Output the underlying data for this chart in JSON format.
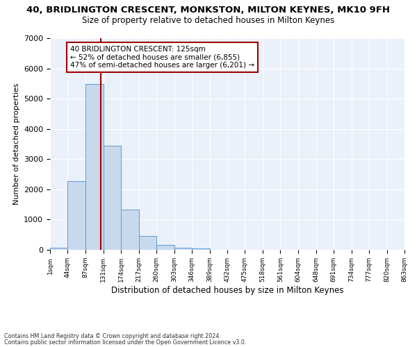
{
  "title1": "40, BRIDLINGTON CRESCENT, MONKSTON, MILTON KEYNES, MK10 9FH",
  "title2": "Size of property relative to detached houses in Milton Keynes",
  "xlabel": "Distribution of detached houses by size in Milton Keynes",
  "ylabel": "Number of detached properties",
  "bar_values": [
    80,
    2280,
    5480,
    3450,
    1320,
    470,
    155,
    80,
    45,
    0,
    0,
    0,
    0,
    0,
    0,
    0,
    0,
    0,
    0,
    0
  ],
  "bin_edges": [
    1,
    44,
    87,
    131,
    174,
    217,
    260,
    303,
    346,
    389,
    432,
    475,
    518,
    561,
    604,
    648,
    691,
    734,
    777,
    820,
    863
  ],
  "tick_labels": [
    "1sqm",
    "44sqm",
    "87sqm",
    "131sqm",
    "174sqm",
    "217sqm",
    "260sqm",
    "303sqm",
    "346sqm",
    "389sqm",
    "432sqm",
    "475sqm",
    "518sqm",
    "561sqm",
    "604sqm",
    "648sqm",
    "691sqm",
    "734sqm",
    "777sqm",
    "820sqm",
    "863sqm"
  ],
  "bar_color": "#c9d9ed",
  "bar_edge_color": "#5b9bd5",
  "vline_x": 125,
  "vline_color": "#a00000",
  "ylim": [
    0,
    7000
  ],
  "yticks": [
    0,
    1000,
    2000,
    3000,
    4000,
    5000,
    6000,
    7000
  ],
  "annotation_text": "40 BRIDLINGTON CRESCENT: 125sqm\n← 52% of detached houses are smaller (6,855)\n47% of semi-detached houses are larger (6,201) →",
  "annotation_box_color": "#ffffff",
  "annotation_box_edge": "#a00000",
  "footnote1": "Contains HM Land Registry data © Crown copyright and database right 2024.",
  "footnote2": "Contains public sector information licensed under the Open Government Licence v3.0.",
  "plot_bg_color": "#eaf1fb",
  "grid_color": "#ffffff",
  "title1_fontsize": 9.5,
  "title2_fontsize": 8.5,
  "xlabel_fontsize": 8.5,
  "ylabel_fontsize": 8
}
